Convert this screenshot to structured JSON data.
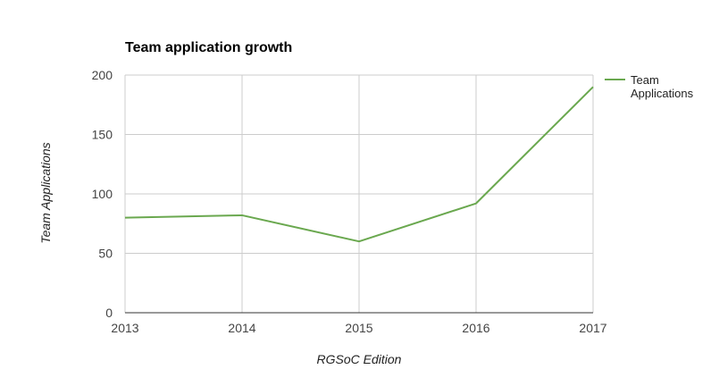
{
  "chart_data": {
    "type": "line",
    "title": "Team application growth",
    "xlabel": "RGSoC Edition",
    "ylabel": "Team Applications",
    "categories": [
      "2013",
      "2014",
      "2015",
      "2016",
      "2017"
    ],
    "series": [
      {
        "name": "Team Applications",
        "values": [
          80,
          82,
          60,
          92,
          190
        ],
        "color": "#6aa84f"
      }
    ],
    "ylim": [
      0,
      200
    ],
    "yticks": [
      "0",
      "50",
      "100",
      "150",
      "200"
    ],
    "grid": true,
    "legend": "right"
  }
}
